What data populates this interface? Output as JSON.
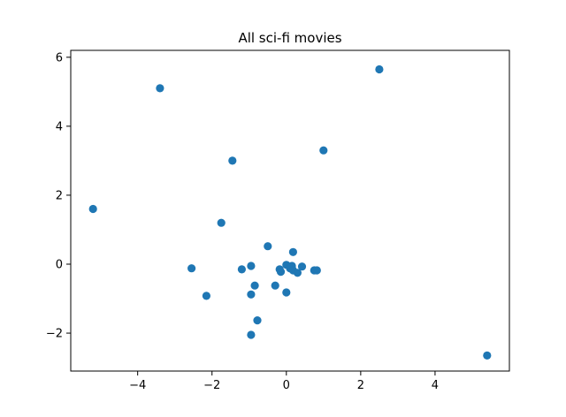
{
  "chart_data": {
    "type": "scatter",
    "title": "All sci-fi movies",
    "xlabel": "",
    "ylabel": "",
    "xlim": [
      -5.8,
      6.0
    ],
    "ylim": [
      -3.1,
      6.2
    ],
    "xticks": [
      -4,
      -2,
      0,
      2,
      4
    ],
    "yticks": [
      -2,
      0,
      2,
      4,
      6
    ],
    "grid": false,
    "marker_color": "#1f77b4",
    "points": [
      {
        "x": -5.2,
        "y": 1.6
      },
      {
        "x": -3.4,
        "y": 5.1
      },
      {
        "x": 2.5,
        "y": 5.65
      },
      {
        "x": -1.45,
        "y": 3.0
      },
      {
        "x": 1.0,
        "y": 3.3
      },
      {
        "x": -1.75,
        "y": 1.2
      },
      {
        "x": -2.55,
        "y": -0.12
      },
      {
        "x": -2.15,
        "y": -0.92
      },
      {
        "x": -1.2,
        "y": -0.15
      },
      {
        "x": -0.95,
        "y": -0.05
      },
      {
        "x": -0.85,
        "y": -0.62
      },
      {
        "x": -0.95,
        "y": -0.88
      },
      {
        "x": -0.78,
        "y": -1.63
      },
      {
        "x": -0.95,
        "y": -2.05
      },
      {
        "x": -0.5,
        "y": 0.52
      },
      {
        "x": -0.3,
        "y": -0.62
      },
      {
        "x": -0.18,
        "y": -0.15
      },
      {
        "x": -0.15,
        "y": -0.22
      },
      {
        "x": 0.0,
        "y": -0.02
      },
      {
        "x": 0.0,
        "y": -0.82
      },
      {
        "x": 0.1,
        "y": -0.12
      },
      {
        "x": 0.15,
        "y": -0.05
      },
      {
        "x": 0.18,
        "y": -0.18
      },
      {
        "x": 0.18,
        "y": 0.35
      },
      {
        "x": 0.3,
        "y": -0.25
      },
      {
        "x": 0.42,
        "y": -0.07
      },
      {
        "x": 0.75,
        "y": -0.18
      },
      {
        "x": 0.82,
        "y": -0.18
      },
      {
        "x": 5.4,
        "y": -2.65
      }
    ]
  }
}
